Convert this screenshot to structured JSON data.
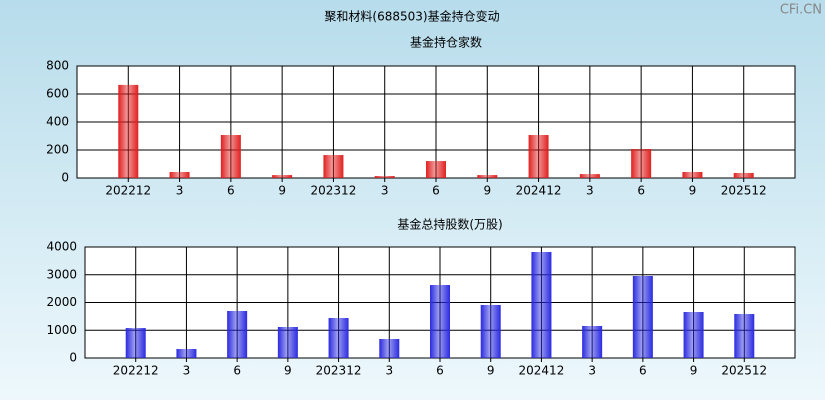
{
  "title": "聚和材料(688503)基金持仓变动",
  "watermark": "CFi.CN",
  "chart_data": [
    {
      "type": "bar",
      "title": "基金持仓家数",
      "categories": [
        "202212",
        "3",
        "6",
        "9",
        "202312",
        "3",
        "6",
        "9",
        "202412",
        "3",
        "6",
        "9",
        "202512"
      ],
      "values": [
        665,
        43,
        307,
        21,
        164,
        14,
        121,
        21,
        307,
        28,
        207,
        43,
        36
      ],
      "color": "#e02020",
      "ylim": [
        0,
        800
      ],
      "yticks": [
        0,
        200,
        400,
        600,
        800
      ],
      "grid": true
    },
    {
      "type": "bar",
      "title": "基金总持股数(万股)",
      "categories": [
        "202212",
        "3",
        "6",
        "9",
        "202312",
        "3",
        "6",
        "9",
        "202412",
        "3",
        "6",
        "9",
        "202512"
      ],
      "values": [
        1080,
        324,
        1694,
        1117,
        1441,
        685,
        2630,
        1910,
        3820,
        1153,
        2955,
        1658,
        1586
      ],
      "color": "#2a2ae0",
      "ylim": [
        0,
        4000
      ],
      "yticks": [
        0,
        1000,
        2000,
        3000,
        4000
      ],
      "grid": true
    }
  ]
}
